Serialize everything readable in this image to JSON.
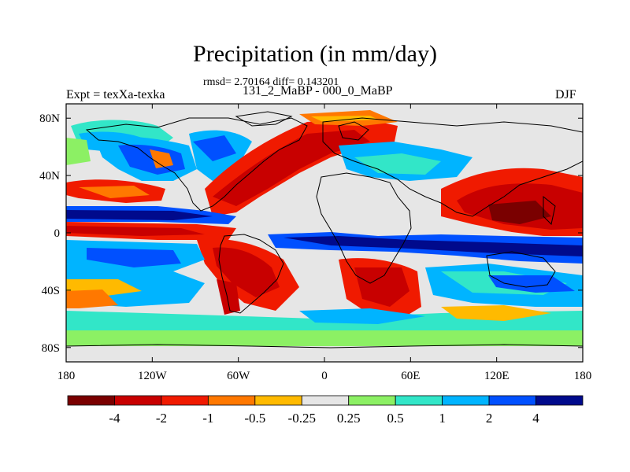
{
  "title": "Precipitation (in mm/day)",
  "rmsd_line": "rmsd= 2.70164 diff= 0.143201",
  "center_subtitle": "131_2_MaBP - 000_0_MaBP",
  "left_subtitle": "Expt = texXa-texka",
  "right_subtitle": "DJF",
  "map": {
    "projection": "cylindrical-equidistant",
    "lon_range": [
      -180,
      180
    ],
    "lat_range": [
      -90,
      90
    ],
    "lon_ticks": [
      {
        "value": -180,
        "label": "180"
      },
      {
        "value": -120,
        "label": "120W"
      },
      {
        "value": -60,
        "label": "60W"
      },
      {
        "value": 0,
        "label": "0"
      },
      {
        "value": 60,
        "label": "60E"
      },
      {
        "value": 120,
        "label": "120E"
      },
      {
        "value": 180,
        "label": "180"
      }
    ],
    "lat_ticks": [
      {
        "value": 80,
        "label": "80N"
      },
      {
        "value": 40,
        "label": "40N"
      },
      {
        "value": 0,
        "label": "0"
      },
      {
        "value": -40,
        "label": "40S"
      },
      {
        "value": -80,
        "label": "80S"
      }
    ]
  },
  "colorbar": {
    "colors": [
      "#7a0000",
      "#c80000",
      "#f01a00",
      "#ff7800",
      "#ffba00",
      "#e6e6e6",
      "#8cf064",
      "#32e6c8",
      "#00b4ff",
      "#0050ff",
      "#000a8c"
    ],
    "labels": [
      "-4",
      "-2",
      "-1",
      "-0.5",
      "-0.25",
      "0.25",
      "0.5",
      "1",
      "2",
      "4"
    ]
  }
}
